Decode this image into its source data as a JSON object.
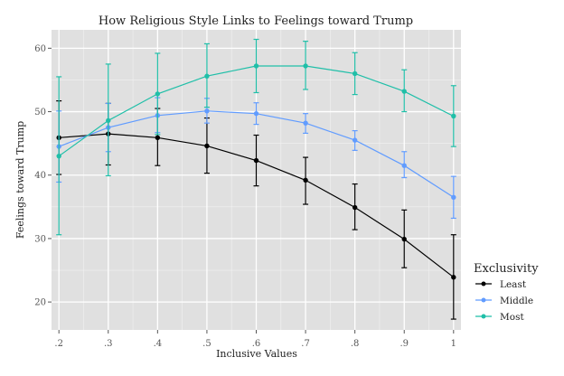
{
  "chart_data": {
    "type": "line",
    "title": "How Religious Style Links to Feelings toward Trump",
    "xlabel": "Inclusive Values",
    "ylabel": "Feelings toward Trump",
    "x": [
      0.2,
      0.3,
      0.4,
      0.5,
      0.6,
      0.7,
      0.8,
      0.9,
      1.0
    ],
    "x_tick_labels": [
      ".2",
      ".3",
      ".4",
      ".5",
      ".6",
      ".7",
      ".8",
      ".9",
      "1"
    ],
    "y_ticks": [
      20,
      30,
      40,
      50,
      60
    ],
    "y_tick_labels": [
      "20",
      "30",
      "40",
      "50",
      "60"
    ],
    "xlim": [
      0.185,
      1.015
    ],
    "ylim": [
      15.6,
      62.9
    ],
    "grid": true,
    "legend_position": "right",
    "legend_title": "Exclusivity",
    "series": [
      {
        "name": "Least",
        "color": "#000000",
        "values": [
          45.9,
          46.5,
          45.9,
          44.6,
          42.3,
          39.2,
          34.9,
          29.9,
          23.9
        ],
        "upper": [
          51.7,
          51.3,
          50.5,
          49.0,
          46.3,
          42.8,
          38.6,
          34.5,
          30.6
        ],
        "lower": [
          40.1,
          41.6,
          41.5,
          40.3,
          38.3,
          35.4,
          31.4,
          25.4,
          17.3
        ]
      },
      {
        "name": "Middle",
        "color": "#619CFF",
        "values": [
          44.5,
          47.5,
          49.4,
          50.1,
          49.7,
          48.2,
          45.5,
          41.5,
          36.5
        ],
        "upper": [
          50.1,
          51.3,
          52.2,
          52.1,
          51.4,
          49.7,
          47.0,
          43.7,
          39.8
        ],
        "lower": [
          38.9,
          43.7,
          46.7,
          48.2,
          48.0,
          46.6,
          43.9,
          39.6,
          33.2
        ]
      },
      {
        "name": "Most",
        "color": "#1FBFA8",
        "values": [
          43.0,
          48.6,
          52.8,
          55.6,
          57.2,
          57.2,
          56.0,
          53.2,
          49.3
        ],
        "upper": [
          55.5,
          57.5,
          59.2,
          60.7,
          61.4,
          61.1,
          59.3,
          56.6,
          54.1
        ],
        "lower": [
          30.6,
          39.9,
          46.4,
          50.7,
          53.0,
          53.5,
          52.7,
          50.0,
          44.5
        ]
      }
    ]
  }
}
